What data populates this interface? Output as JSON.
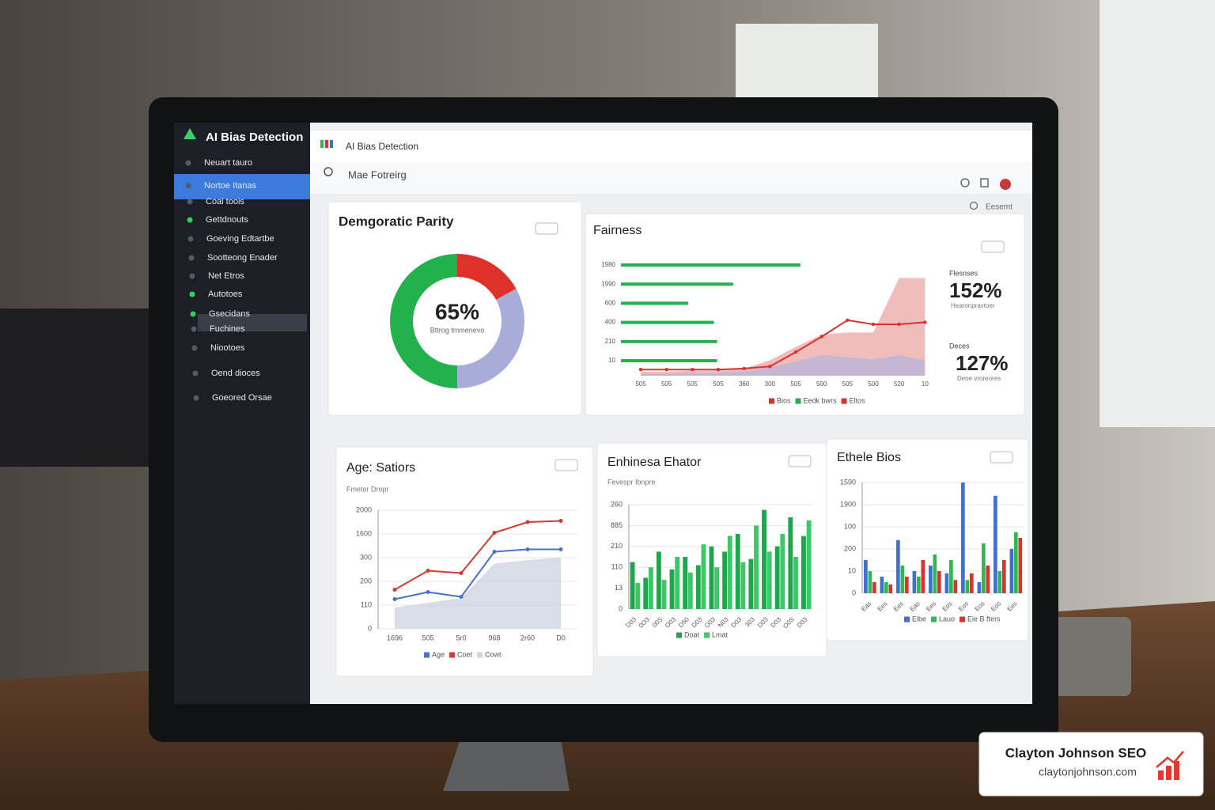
{
  "app": {
    "sidebar_title": "AI Bias Detection",
    "sidebar_items": [
      "Neuart tauro",
      "Nortoe Itanas",
      "Coal toois",
      "Gettdnouts",
      "Goeving Edtartbe",
      "Sootteong Enader",
      "Net Etros",
      "Autotoes",
      "Gsecidans",
      "Fuchines",
      "Niootoes",
      "Oend dioces",
      "Goeored Orsae"
    ],
    "header_title": "AI Bias Detection",
    "search_placeholder": "Mae Fotreirg",
    "filter_label": "Eesemt"
  },
  "chart_data": [
    {
      "type": "donut",
      "title": "Demgoratic Parity",
      "center_label": "65%",
      "center_sublabel": "Bttrog tmmenevo",
      "values": [
        17,
        33,
        50
      ],
      "colors": [
        "#e0302a",
        "#a7acd9",
        "#22b14c"
      ]
    },
    {
      "type": "bar_line",
      "title": "Fairness",
      "bars": {
        "name": "Eedk bwrs",
        "color": "#22b14c",
        "categories": [
          "1980",
          "1990",
          "600",
          "400",
          "210",
          "10"
        ],
        "values": [
          56,
          35,
          21,
          29,
          30,
          30
        ],
        "xlim": [
          0,
          100
        ]
      },
      "categories": [
        "505",
        "505",
        "505",
        "505",
        "360",
        "300",
        "505",
        "500",
        "505",
        "500",
        "520",
        "10"
      ],
      "ylim": [
        0,
        100
      ],
      "series": [
        {
          "name": "Bios",
          "color": "#d7332c",
          "values": [
            6,
            6,
            6,
            6,
            7,
            9,
            23,
            38,
            54,
            50,
            50,
            52
          ]
        },
        {
          "name": "Eltos",
          "color": "#eba5a5",
          "values": [
            4,
            4,
            5,
            5,
            7,
            15,
            28,
            40,
            42,
            42,
            95,
            95
          ]
        }
      ],
      "under_area": {
        "color": "#b7b4dc",
        "values": [
          2,
          2,
          3,
          3,
          4,
          8,
          14,
          20,
          18,
          16,
          20,
          15
        ]
      },
      "stats": [
        {
          "label": "Flesnses",
          "value": "152%",
          "sublabel": "Hearonpravtoer"
        },
        {
          "label": "Deces",
          "value": "127%",
          "sublabel": "Deoe vroreores"
        }
      ]
    },
    {
      "type": "line",
      "title": "Age: Satiors",
      "subtitle": "Fmetor Dropr",
      "y_labels": [
        "2000",
        "1600",
        "300",
        "200",
        "110",
        "0"
      ],
      "categories": [
        "1696",
        "505",
        "5r0",
        "968",
        "2r60",
        "D0"
      ],
      "ylim": [
        0,
        100
      ],
      "series": [
        {
          "name": "Age",
          "color": "#4a72c8",
          "values": [
            25,
            31,
            27,
            65,
            67,
            67
          ]
        },
        {
          "name": "Coet",
          "color": "#d23a32",
          "values": [
            33,
            49,
            47,
            81,
            90,
            91
          ]
        },
        {
          "name": "Cowt",
          "color": "#cfd5e2",
          "values": [
            18,
            22,
            26,
            55,
            58,
            60
          ],
          "area": true
        }
      ]
    },
    {
      "type": "bar",
      "title": "Enhinesa Ehator",
      "subtitle": "Fevespr Ibnpre",
      "y_labels": [
        "260",
        "885",
        "210",
        "110",
        "13",
        "0"
      ],
      "categories": [
        "D03",
        "0O3",
        "00S",
        "O03",
        "D50",
        "D03",
        "O03",
        "N03",
        "D03",
        "303",
        "D03",
        "D03",
        "O0S",
        "D03"
      ],
      "ylim": [
        0,
        100
      ],
      "series": [
        {
          "name": "Doat",
          "color": "#1aa84a",
          "values": [
            45,
            30,
            55,
            38,
            50,
            42,
            60,
            55,
            72,
            48,
            95,
            60,
            88,
            70
          ]
        },
        {
          "name": "Lmat",
          "color": "#3cc866",
          "values": [
            25,
            40,
            28,
            50,
            35,
            62,
            40,
            70,
            45,
            80,
            55,
            72,
            50,
            85
          ]
        }
      ]
    },
    {
      "type": "bar",
      "title": "Ethele Bios",
      "y_labels": [
        "1590",
        "1900",
        "100",
        "200",
        "10",
        "0"
      ],
      "categories": [
        "Eas",
        "Ees",
        "Ees",
        "Eas",
        "Ees",
        "Eos",
        "Eos",
        "Eos",
        "Eos",
        "Ees"
      ],
      "ylim": [
        0,
        100
      ],
      "series": [
        {
          "name": "Elbe",
          "color": "#3f6fd0",
          "values": [
            30,
            15,
            48,
            20,
            25,
            18,
            100,
            10,
            88,
            40
          ]
        },
        {
          "name": "Lauo",
          "color": "#2fb84f",
          "values": [
            20,
            10,
            25,
            15,
            35,
            30,
            12,
            45,
            20,
            55
          ]
        },
        {
          "name": "Eie B fters",
          "color": "#d8342c",
          "values": [
            10,
            8,
            15,
            30,
            20,
            12,
            18,
            25,
            30,
            50
          ]
        }
      ]
    }
  ],
  "badge": {
    "name": "Clayton Johnson SEO",
    "url": "claytonjohnson.com"
  }
}
